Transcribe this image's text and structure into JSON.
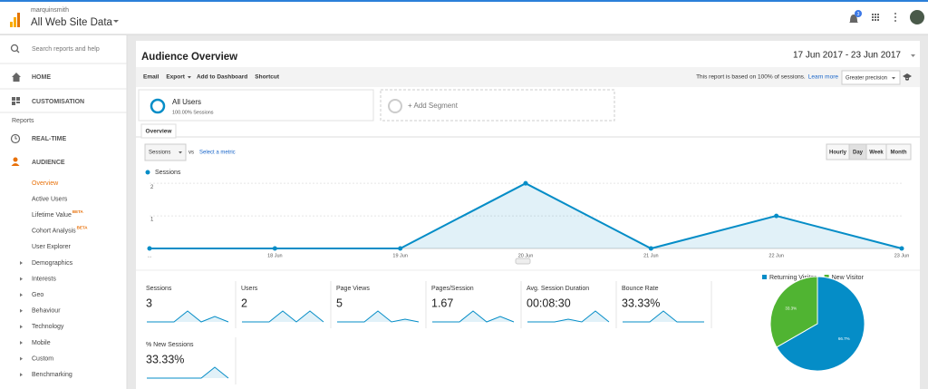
{
  "header": {
    "account": "marquinsmith",
    "property": "All Web Site Data",
    "notifications": "3"
  },
  "sidebar": {
    "search": "Search reports and help",
    "home": "HOME",
    "customisation": "CUSTOMISATION",
    "reports": "Reports",
    "realtime": "REAL-TIME",
    "audience": "AUDIENCE",
    "audience_items": [
      {
        "label": "Overview"
      },
      {
        "label": "Active Users"
      },
      {
        "label": "Lifetime Value",
        "badge": "BETA"
      },
      {
        "label": "Cohort Analysis",
        "badge": "BETA"
      },
      {
        "label": "User Explorer"
      }
    ],
    "groups": [
      "Demographics",
      "Interests",
      "Geo",
      "Behaviour",
      "Technology",
      "Mobile",
      "Custom",
      "Benchmarking"
    ]
  },
  "report": {
    "title": "Audience Overview",
    "date_range": "17 Jun 2017 - 23 Jun 2017",
    "toolbar": [
      "Email",
      "Export",
      "Add to Dashboard",
      "Shortcut"
    ],
    "sampling_note": "This report is based on 100% of sessions.",
    "learn_more": "Learn more",
    "precision": "Greater precision",
    "segment": {
      "name": "All Users",
      "detail": "100.00% Sessions"
    },
    "add_segment": "+ Add Segment",
    "tab": "Overview",
    "metric_select": "Sessions",
    "vs": "vs",
    "select_metric": "Select a metric",
    "granularity": [
      "Hourly",
      "Day",
      "Week",
      "Month"
    ]
  },
  "chart_data": [
    {
      "type": "line",
      "categories": [
        "...",
        "18 Jun",
        "19 Jun",
        "20 Jun",
        "21 Jun",
        "22 Jun",
        "23 Jun"
      ],
      "series": [
        {
          "name": "Sessions",
          "color": "#058dc7",
          "values": [
            0,
            0,
            0,
            2,
            0,
            1,
            0
          ]
        }
      ],
      "ylim": [
        0,
        2.2
      ],
      "yticks": [
        1,
        2
      ],
      "grid": true
    },
    {
      "type": "pie",
      "categories": [
        "Returning Visitor",
        "New Visitor"
      ],
      "values": [
        66.7,
        33.3
      ],
      "value_labels": [
        "66.7%",
        "33.3%"
      ],
      "colors": [
        "#058dc7",
        "#50b432"
      ]
    }
  ],
  "metrics": [
    {
      "label": "Sessions",
      "value": "3",
      "trend": [
        0,
        0,
        0,
        2,
        0,
        1,
        0
      ]
    },
    {
      "label": "Users",
      "value": "2",
      "trend": [
        0,
        0,
        0,
        1,
        0,
        1,
        0
      ]
    },
    {
      "label": "Page Views",
      "value": "5",
      "trend": [
        0,
        0,
        0,
        4,
        0,
        1,
        0
      ]
    },
    {
      "label": "Pages/Session",
      "value": "1.67",
      "trend": [
        0,
        0,
        0,
        2,
        0,
        1,
        0
      ]
    },
    {
      "label": "Avg. Session Duration",
      "value": "00:08:30",
      "trend": [
        0,
        0,
        0,
        255,
        0,
        1020,
        0
      ]
    },
    {
      "label": "Bounce Rate",
      "value": "33.33%",
      "trend": [
        0,
        0,
        0,
        50,
        0,
        0,
        0
      ]
    },
    {
      "label": "% New Sessions",
      "value": "33.33%",
      "trend": [
        0,
        0,
        0,
        0,
        0,
        100,
        0
      ]
    }
  ]
}
